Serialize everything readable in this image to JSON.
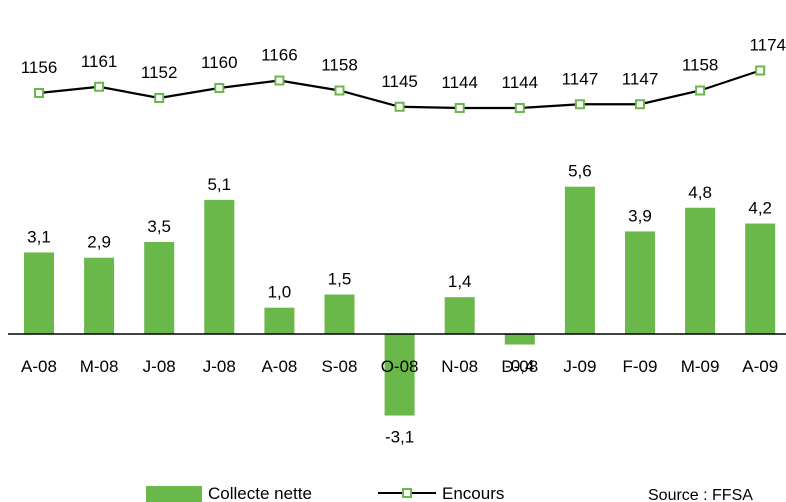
{
  "chart_data": {
    "type": "bar+line",
    "categories": [
      "A-08",
      "M-08",
      "J-08",
      "J-08",
      "A-08",
      "S-08",
      "O-08",
      "N-08",
      "D-08",
      "J-09",
      "F-09",
      "M-09",
      "A-09"
    ],
    "series": [
      {
        "name": "Collecte nette",
        "type": "bar",
        "color": "#6ab74a",
        "values": [
          3.1,
          2.9,
          3.5,
          5.1,
          1.0,
          1.5,
          -3.1,
          1.4,
          -0.4,
          5.6,
          3.9,
          4.8,
          4.2
        ],
        "labels": [
          "3,1",
          "2,9",
          "3,5",
          "5,1",
          "1,0",
          "1,5",
          "-3,1",
          "1,4",
          "-0,4",
          "5,6",
          "3,9",
          "4,8",
          "4,2"
        ]
      },
      {
        "name": "Encours",
        "type": "line",
        "color": "#000000",
        "marker_color": "#6ab74a",
        "values": [
          1156,
          1161,
          1152,
          1160,
          1166,
          1158,
          1145,
          1144,
          1144,
          1147,
          1147,
          1158,
          1174
        ],
        "labels": [
          "1156",
          "1161",
          "1152",
          "1160",
          "1166",
          "1158",
          "1145",
          "1144",
          "1144",
          "1147",
          "1147",
          "1158",
          "1174"
        ]
      }
    ],
    "legend": {
      "placement": "bottom",
      "entries": [
        "Collecte nette",
        "Encours"
      ]
    },
    "source": "Source : FFSA"
  }
}
